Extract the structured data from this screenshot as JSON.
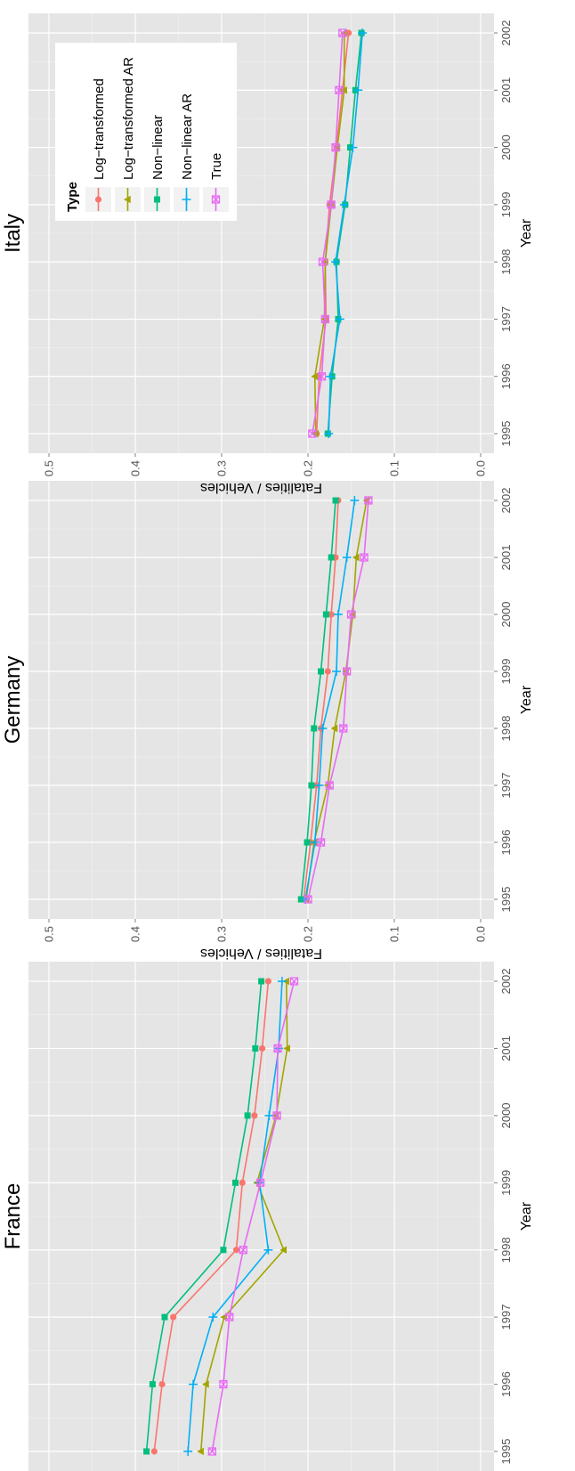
{
  "chart_data": [
    {
      "type": "line",
      "title": "France",
      "xlabel": "Year",
      "ylabel": "Fatalities / Vehicles",
      "ylim": [
        0,
        0.5
      ],
      "yticks": [
        "0.0",
        "0.1",
        "0.2",
        "0.3",
        "0.4",
        "0.5"
      ],
      "x": [
        "1995",
        "1996",
        "1997",
        "1998",
        "1999",
        "2000",
        "2001",
        "2002"
      ],
      "grid": true,
      "series": [
        {
          "name": "Log−transformed",
          "values": [
            0.378,
            0.369,
            0.356,
            0.283,
            0.276,
            0.262,
            0.253,
            0.246
          ]
        },
        {
          "name": "Log−transformed AR",
          "values": [
            0.324,
            0.318,
            0.297,
            0.228,
            0.259,
            0.237,
            0.224,
            0.225
          ]
        },
        {
          "name": "Non−linear",
          "values": [
            0.387,
            0.38,
            0.366,
            0.298,
            0.284,
            0.27,
            0.261,
            0.254
          ]
        },
        {
          "name": "Non−linear AR",
          "values": [
            0.339,
            0.333,
            0.31,
            0.246,
            0.256,
            0.245,
            0.234,
            0.23
          ]
        },
        {
          "name": "True",
          "values": [
            0.311,
            0.298,
            0.291,
            0.275,
            0.255,
            0.236,
            0.235,
            0.216
          ]
        }
      ]
    },
    {
      "type": "line",
      "title": "Germany",
      "xlabel": "Year",
      "ylabel": "Fatalities / Vehicles",
      "ylim": [
        0,
        0.5
      ],
      "yticks": [
        "0.0",
        "0.1",
        "0.2",
        "0.3",
        "0.4",
        "0.5"
      ],
      "x": [
        "1995",
        "1996",
        "1997",
        "1998",
        "1999",
        "2000",
        "2001",
        "2002"
      ],
      "grid": true,
      "series": [
        {
          "name": "Log−transformed",
          "values": [
            0.205,
            0.197,
            0.19,
            0.185,
            0.177,
            0.173,
            0.168,
            0.165
          ]
        },
        {
          "name": "Log−transformed AR",
          "values": [
            0.202,
            0.193,
            0.177,
            0.169,
            0.156,
            0.148,
            0.144,
            0.132
          ]
        },
        {
          "name": "Non−linear",
          "values": [
            0.208,
            0.201,
            0.196,
            0.193,
            0.185,
            0.179,
            0.173,
            0.168
          ]
        },
        {
          "name": "Non−linear AR",
          "values": [
            0.203,
            0.192,
            0.187,
            0.183,
            0.167,
            0.165,
            0.155,
            0.146
          ]
        },
        {
          "name": "True",
          "values": [
            0.2,
            0.185,
            0.175,
            0.159,
            0.155,
            0.15,
            0.135,
            0.13
          ]
        }
      ]
    },
    {
      "type": "line",
      "title": "Italy",
      "xlabel": "Year",
      "ylabel": "Fatalities / Vehicles",
      "ylim": [
        0,
        0.5
      ],
      "yticks": [
        "0.0",
        "0.1",
        "0.2",
        "0.3",
        "0.4",
        "0.5"
      ],
      "x": [
        "1995",
        "1996",
        "1997",
        "1998",
        "1999",
        "2000",
        "2001",
        "2002"
      ],
      "grid": true,
      "legend": {
        "title": "Type",
        "position": "top-left"
      },
      "series": [
        {
          "name": "Log−transformed",
          "values": [
            0.19,
            0.187,
            0.179,
            0.18,
            0.175,
            0.167,
            0.16,
            0.153
          ]
        },
        {
          "name": "Log−transformed AR",
          "values": [
            0.191,
            0.192,
            0.181,
            0.18,
            0.173,
            0.166,
            0.158,
            0.158
          ]
        },
        {
          "name": "Non−linear",
          "values": [
            0.177,
            0.172,
            0.165,
            0.167,
            0.157,
            0.151,
            0.145,
            0.138
          ]
        },
        {
          "name": "Non−linear AR",
          "values": [
            0.176,
            0.174,
            0.163,
            0.168,
            0.158,
            0.148,
            0.142,
            0.137
          ]
        },
        {
          "name": "True",
          "values": [
            0.195,
            0.184,
            0.18,
            0.183,
            0.173,
            0.168,
            0.164,
            0.16
          ]
        }
      ]
    }
  ],
  "series_colors": [
    "#F8766D",
    "#A3A500",
    "#00BF7D",
    "#00B0F6",
    "#E76BF3"
  ],
  "series_shapes": [
    "circle",
    "triangle",
    "square",
    "plus",
    "square-cross"
  ],
  "panel_background": "#E5E5E5"
}
